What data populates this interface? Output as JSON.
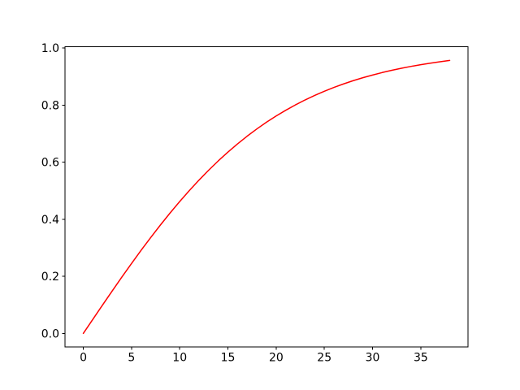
{
  "figure": {
    "background_color": "#ffffff",
    "spine_color": "#000000",
    "tick_color": "#000000",
    "tick_label_color": "#000000"
  },
  "chart_data": {
    "type": "line",
    "title": "",
    "xlabel": "",
    "ylabel": "",
    "grid": false,
    "legend": null,
    "xlim": [
      -1.9,
      39.9
    ],
    "ylim": [
      -0.048,
      1.004
    ],
    "x_ticks": [
      0,
      5,
      10,
      15,
      20,
      25,
      30,
      35
    ],
    "x_tick_labels": [
      "0",
      "5",
      "10",
      "15",
      "20",
      "25",
      "30",
      "35"
    ],
    "y_ticks": [
      0.0,
      0.2,
      0.4,
      0.6,
      0.8,
      1.0
    ],
    "y_tick_labels": [
      "0.0",
      "0.2",
      "0.4",
      "0.6",
      "0.8",
      "1.0"
    ],
    "series": [
      {
        "name": "red-curve",
        "color": "#ff0000",
        "line_width": 1.5,
        "x": [
          0,
          1,
          2,
          3,
          4,
          5,
          6,
          7,
          8,
          9,
          10,
          11,
          12,
          13,
          14,
          15,
          16,
          17,
          18,
          19,
          20,
          21,
          22,
          23,
          24,
          25,
          26,
          27,
          28,
          29,
          30,
          31,
          32,
          33,
          34,
          35,
          36,
          37,
          38
        ],
        "y": [
          0.0,
          0.05,
          0.0997,
          0.1489,
          0.1974,
          0.2449,
          0.2913,
          0.3364,
          0.3799,
          0.4219,
          0.4621,
          0.5005,
          0.537,
          0.5717,
          0.6044,
          0.6351,
          0.664,
          0.6911,
          0.7163,
          0.7398,
          0.7616,
          0.7818,
          0.8005,
          0.8178,
          0.8337,
          0.8483,
          0.8617,
          0.8741,
          0.8854,
          0.8957,
          0.9051,
          0.9138,
          0.9217,
          0.9289,
          0.9354,
          0.9414,
          0.9468,
          0.9517,
          0.9562
        ]
      }
    ]
  }
}
